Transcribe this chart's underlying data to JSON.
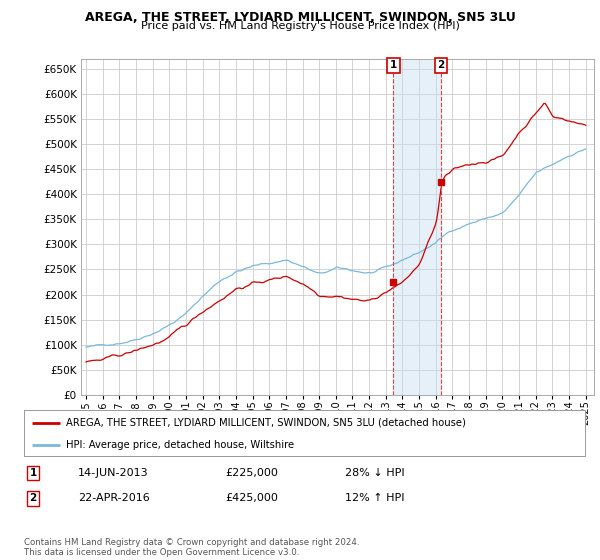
{
  "title": "AREGA, THE STREET, LYDIARD MILLICENT, SWINDON, SN5 3LU",
  "subtitle": "Price paid vs. HM Land Registry's House Price Index (HPI)",
  "ytick_vals": [
    0,
    50000,
    100000,
    150000,
    200000,
    250000,
    300000,
    350000,
    400000,
    450000,
    500000,
    550000,
    600000,
    650000
  ],
  "hpi_color": "#7ab8dc",
  "price_color": "#cc0000",
  "transaction1_x": 2013.45,
  "transaction1_price": 225000,
  "transaction2_x": 2016.31,
  "transaction2_price": 425000,
  "legend_line1": "AREGA, THE STREET, LYDIARD MILLICENT, SWINDON, SN5 3LU (detached house)",
  "legend_line2": "HPI: Average price, detached house, Wiltshire",
  "table_row1": [
    "1",
    "14-JUN-2013",
    "£225,000",
    "28% ↓ HPI"
  ],
  "table_row2": [
    "2",
    "22-APR-2016",
    "£425,000",
    "12% ↑ HPI"
  ],
  "footer": "Contains HM Land Registry data © Crown copyright and database right 2024.\nThis data is licensed under the Open Government Licence v3.0.",
  "background_color": "#ffffff",
  "grid_color": "#cccccc",
  "xmin": 1994.7,
  "xmax": 2025.5
}
